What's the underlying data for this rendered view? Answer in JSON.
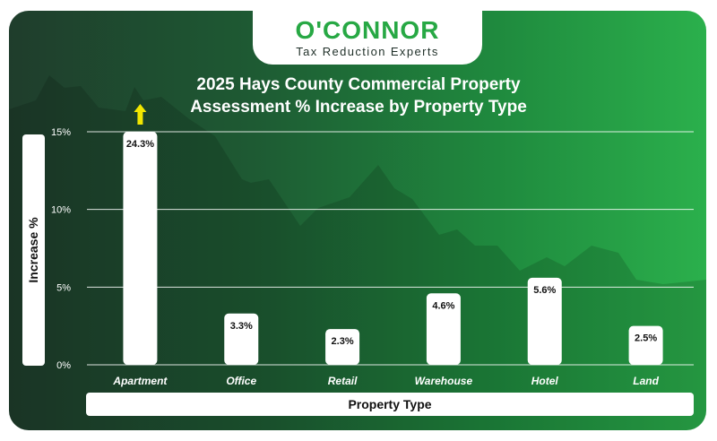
{
  "logo": {
    "name": "O'CONNOR",
    "tagline": "Tax Reduction Experts",
    "color": "#27a844"
  },
  "chart_data": {
    "type": "bar",
    "title_line1": "2025 Hays County Commercial Property",
    "title_line2": "Assessment % Increase by Property Type",
    "xlabel": "Property Type",
    "ylabel": "Increase %",
    "ylim": [
      0,
      15
    ],
    "yticks": [
      0,
      5,
      10,
      15
    ],
    "ytick_labels": [
      "0%",
      "5%",
      "10%",
      "15%"
    ],
    "categories": [
      "Apartment",
      "Office",
      "Retail",
      "Warehouse",
      "Hotel",
      "Land"
    ],
    "values": [
      24.3,
      3.3,
      2.3,
      4.6,
      5.6,
      2.5
    ],
    "value_labels": [
      "24.3%",
      "3.3%",
      "2.3%",
      "4.6%",
      "5.6%",
      "2.5%"
    ],
    "overflow_indicator": {
      "category": "Apartment",
      "color": "#f2e600"
    },
    "bar_color": "#ffffff",
    "grid": true
  }
}
